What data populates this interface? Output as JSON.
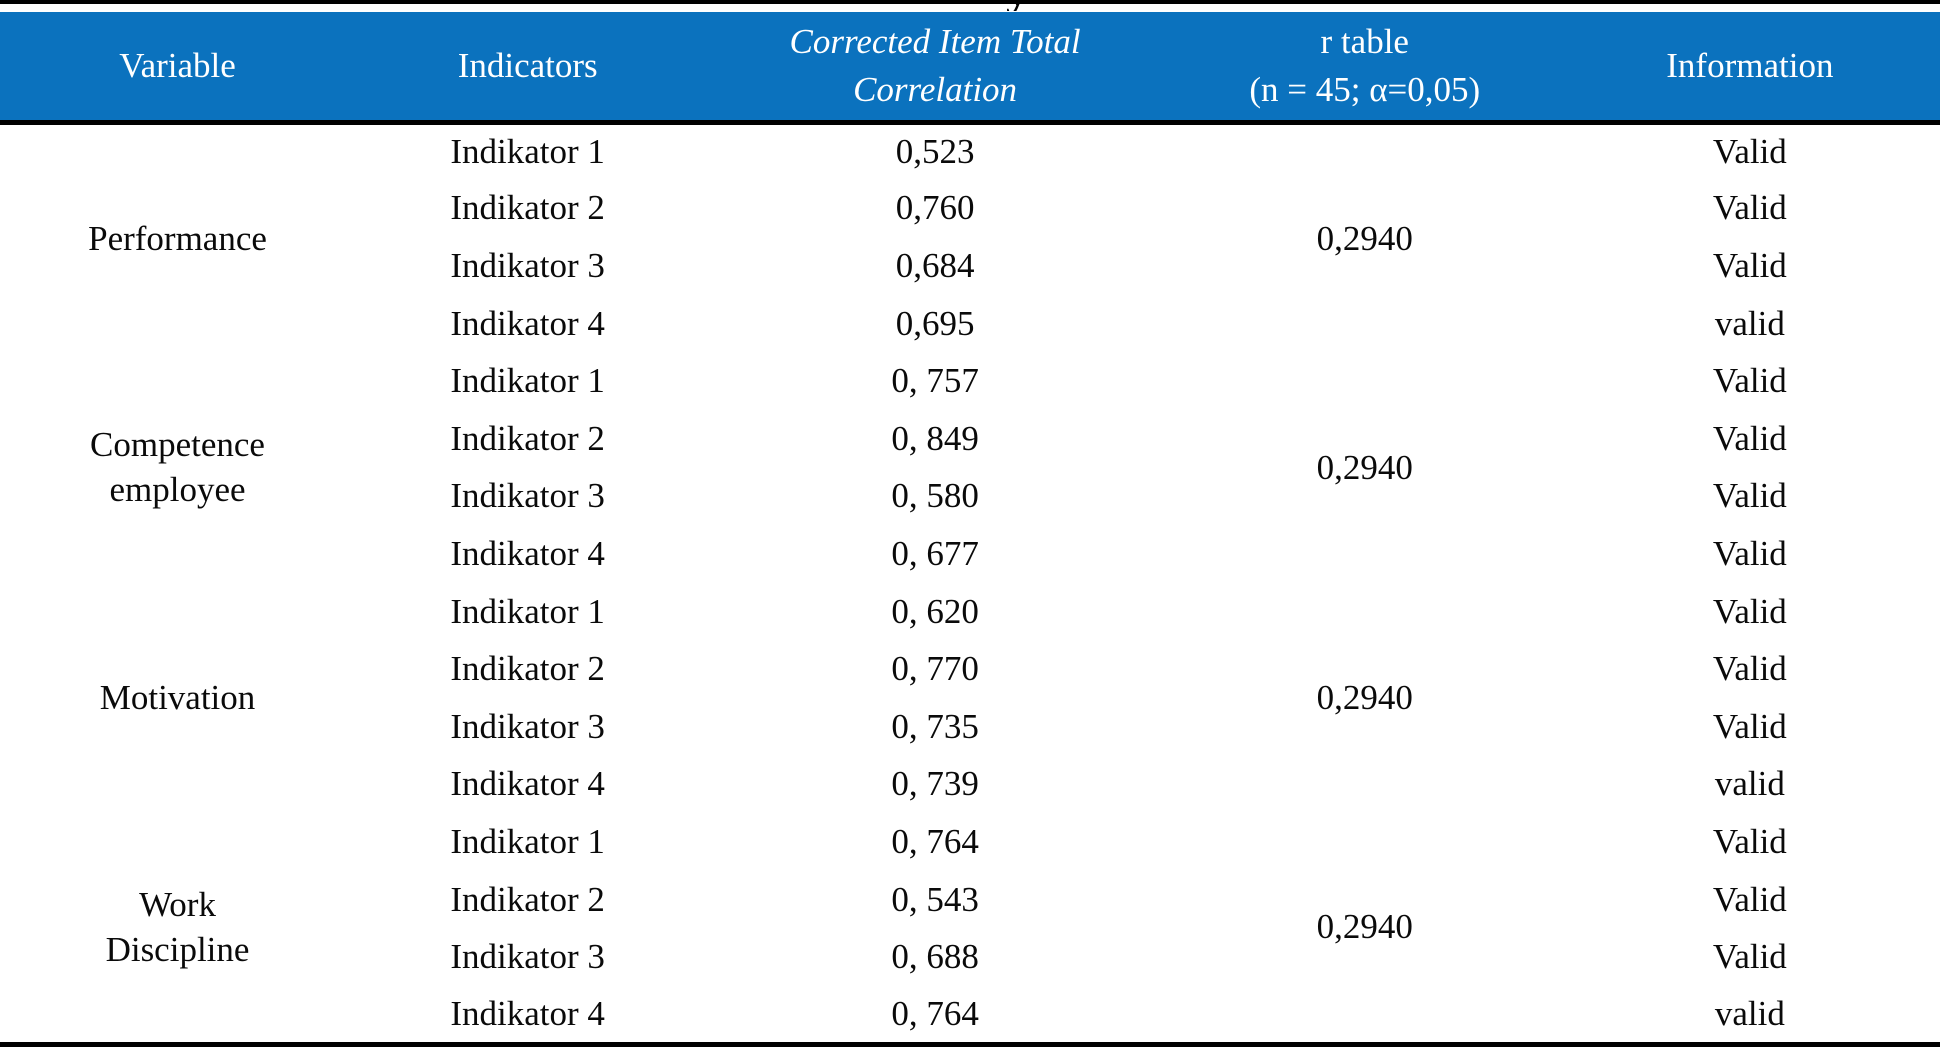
{
  "page": {
    "cropped_title_fragment": "y"
  },
  "colors": {
    "header_bg": "#0b72be",
    "header_text": "#ffffff",
    "body_text": "#0a0a0a",
    "rule": "#000000"
  },
  "table": {
    "columns": [
      {
        "key": "variable",
        "label": "Variable"
      },
      {
        "key": "indicators",
        "label": "Indicators"
      },
      {
        "key": "corrected_item_total_correlation",
        "italic": true,
        "lines": [
          "Corrected Item Total",
          "Correlation"
        ]
      },
      {
        "key": "r_table",
        "lines": [
          "r table",
          "(n = 45; α=0,05)"
        ]
      },
      {
        "key": "information",
        "label": "Information"
      }
    ],
    "groups": [
      {
        "variable_lines": [
          "Performance"
        ],
        "r_table": "0,2940",
        "rows": [
          {
            "indicator": "Indikator 1",
            "correlation": "0,523",
            "information": "Valid"
          },
          {
            "indicator": "Indikator 2",
            "correlation": "0,760",
            "information": "Valid"
          },
          {
            "indicator": "Indikator 3",
            "correlation": "0,684",
            "information": "Valid"
          },
          {
            "indicator": "Indikator 4",
            "correlation": "0,695",
            "information": "valid"
          }
        ]
      },
      {
        "variable_lines": [
          "Competence",
          "employee"
        ],
        "r_table": "0,2940",
        "rows": [
          {
            "indicator": "Indikator 1",
            "correlation": "0, 757",
            "information": "Valid"
          },
          {
            "indicator": "Indikator 2",
            "correlation": "0, 849",
            "information": "Valid"
          },
          {
            "indicator": "Indikator 3",
            "correlation": "0, 580",
            "information": "Valid"
          },
          {
            "indicator": "Indikator 4",
            "correlation": "0, 677",
            "information": "Valid"
          }
        ]
      },
      {
        "variable_lines": [
          "Motivation"
        ],
        "r_table": "0,2940",
        "rows": [
          {
            "indicator": "Indikator 1",
            "correlation": "0, 620",
            "information": "Valid"
          },
          {
            "indicator": "Indikator 2",
            "correlation": "0, 770",
            "information": "Valid"
          },
          {
            "indicator": "Indikator 3",
            "correlation": "0, 735",
            "information": "Valid"
          },
          {
            "indicator": "Indikator 4",
            "correlation": "0, 739",
            "information": "valid"
          }
        ]
      },
      {
        "variable_lines": [
          "Work",
          "Discipline"
        ],
        "r_table": "0,2940",
        "rows": [
          {
            "indicator": "Indikator 1",
            "correlation": "0, 764",
            "information": "Valid"
          },
          {
            "indicator": "Indikator 2",
            "correlation": "0, 543",
            "information": "Valid"
          },
          {
            "indicator": "Indikator 3",
            "correlation": "0, 688",
            "information": "Valid"
          },
          {
            "indicator": "Indikator 4",
            "correlation": "0, 764",
            "information": "valid"
          }
        ]
      }
    ]
  }
}
